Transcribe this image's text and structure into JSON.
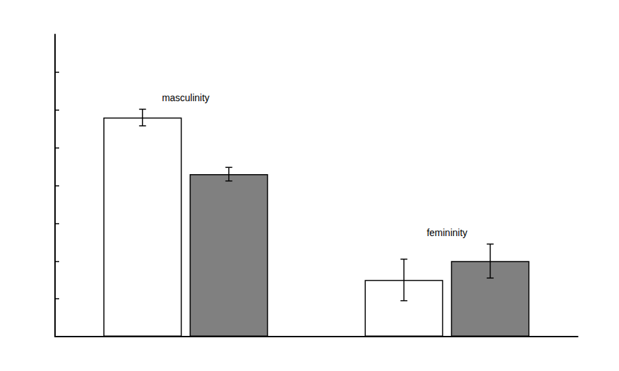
{
  "chart_data": {
    "type": "bar",
    "categories": [
      null,
      null
    ],
    "annotations": [
      "masculinity",
      "femininity"
    ],
    "series": [
      {
        "color": "#ffffff",
        "values": [
          5.8,
          1.5
        ],
        "errors": [
          0.22,
          0.55
        ]
      },
      {
        "color": "#808080",
        "values": [
          4.3,
          2.0
        ],
        "errors": [
          0.18,
          0.45
        ]
      }
    ],
    "ylim": [
      0,
      8.0
    ],
    "yticks": [
      1,
      2,
      3,
      4,
      5,
      6,
      7
    ],
    "grid": false,
    "tick_labels": false
  }
}
